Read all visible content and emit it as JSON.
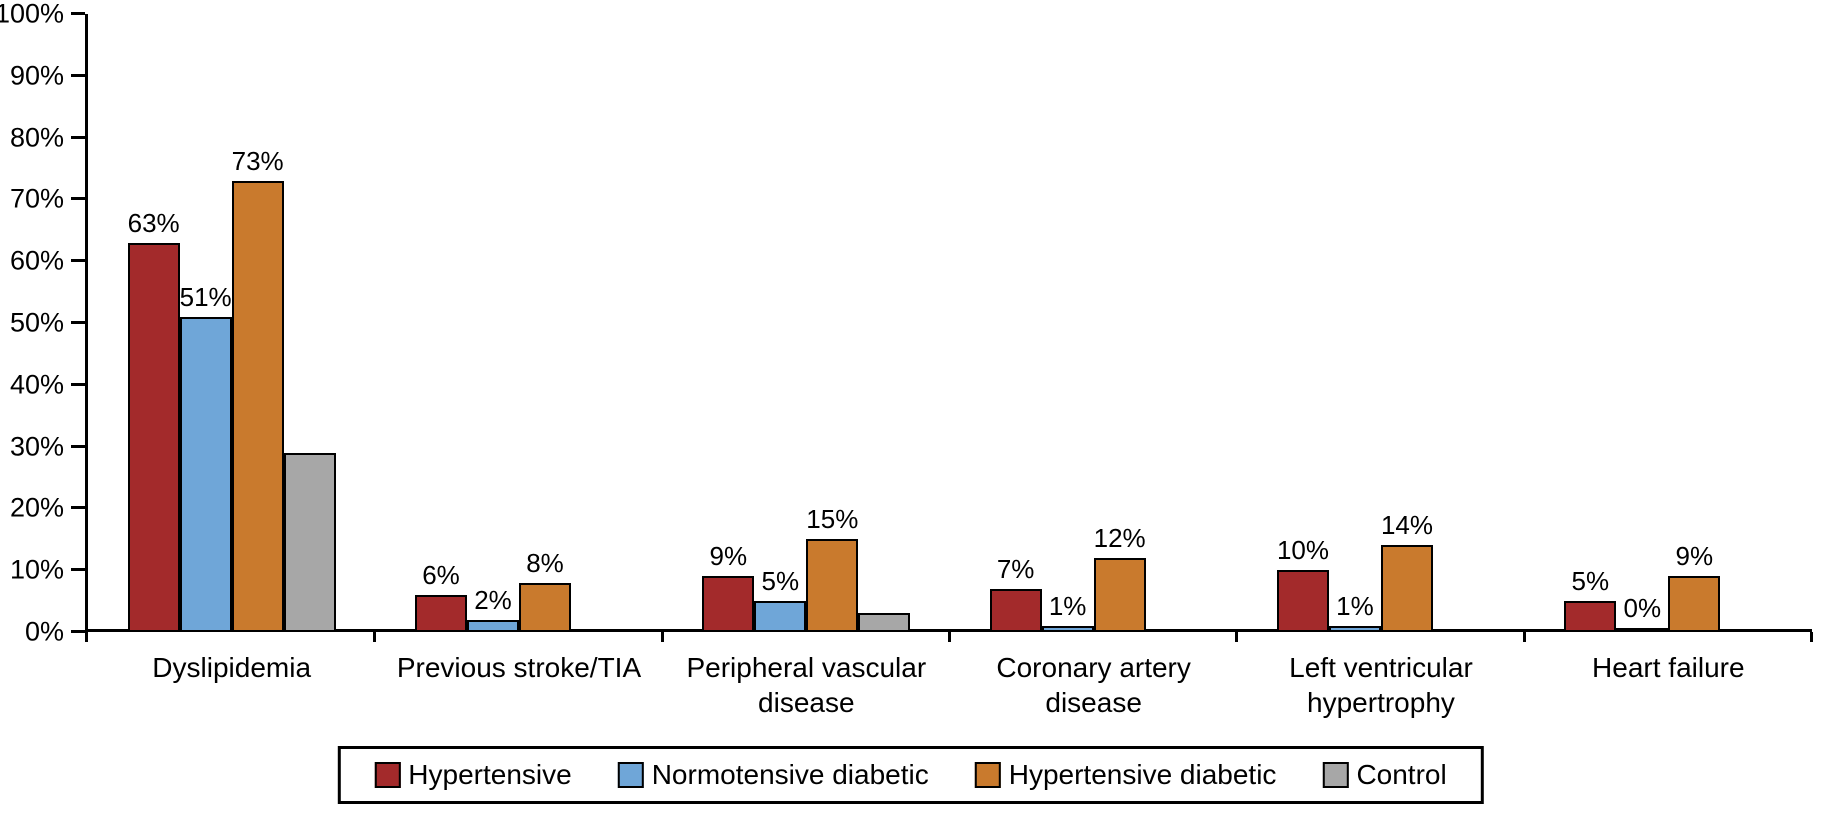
{
  "chart_data": {
    "type": "bar",
    "title": "",
    "xlabel": "",
    "ylabel": "",
    "ylim": [
      0,
      100
    ],
    "grid": false,
    "legend_position": "bottom",
    "y_ticks": [
      "0%",
      "10%",
      "20%",
      "30%",
      "40%",
      "50%",
      "60%",
      "70%",
      "80%",
      "90%",
      "100%"
    ],
    "categories": [
      "Dyslipidemia",
      "Previous stroke/TIA",
      "Peripheral vascular disease",
      "Coronary artery disease",
      "Left ventricular hypertrophy",
      "Heart failure"
    ],
    "series": [
      {
        "name": "Hypertensive",
        "color": "#A32A2B",
        "values": [
          63,
          6,
          9,
          7,
          10,
          5
        ],
        "labels": [
          "63%",
          "6%",
          "9%",
          "7%",
          "10%",
          "5%"
        ]
      },
      {
        "name": "Normotensive diabetic",
        "color": "#6FA6D8",
        "values": [
          51,
          2,
          5,
          1,
          1,
          0.5
        ],
        "labels": [
          "51%",
          "2%",
          "5%",
          "1%",
          "1%",
          "0%"
        ]
      },
      {
        "name": "Hypertensive diabetic",
        "color": "#C97A2D",
        "values": [
          73,
          8,
          15,
          12,
          14,
          9
        ],
        "labels": [
          "73%",
          "8%",
          "15%",
          "12%",
          "14%",
          "9%"
        ]
      },
      {
        "name": "Control",
        "color": "#A7A7A7",
        "values": [
          29,
          0,
          3,
          0,
          0,
          0
        ],
        "labels": [
          "",
          "",
          "",
          "",
          "",
          ""
        ]
      }
    ]
  }
}
